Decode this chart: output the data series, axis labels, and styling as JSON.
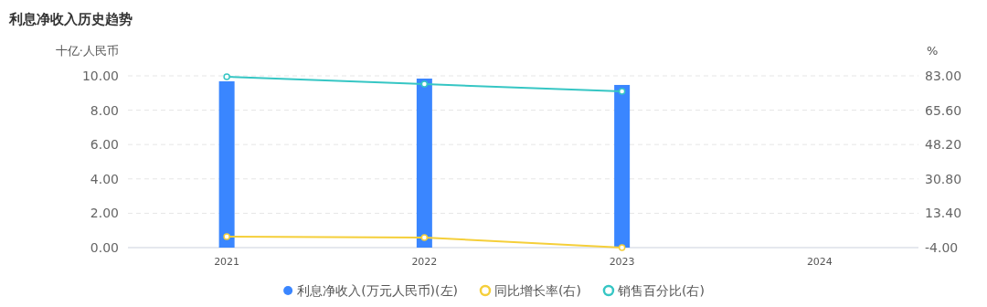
{
  "chart_data": {
    "type": "bar",
    "title": "利息净收入历史趋势",
    "ylabel": "十亿·人民币",
    "y2label": "%",
    "categories": [
      "2021",
      "2022",
      "2023",
      "2024"
    ],
    "series": [
      {
        "name": "利息净收入(万元人民币)(左)",
        "color": "#3a86ff",
        "values": [
          9.68,
          9.84,
          9.47,
          null
        ]
      },
      {
        "name": "同比增长率(右)",
        "type": "line",
        "axis": "y2",
        "color": "#f5cf3a",
        "values": [
          1.6,
          1.1,
          -4.0,
          null
        ]
      },
      {
        "name": "销售百分比(右)",
        "type": "line",
        "axis": "y2",
        "color": "#36c6c4",
        "values": [
          82.5,
          78.8,
          75.1,
          null
        ]
      }
    ],
    "ylim": [
      0,
      10
    ],
    "yticks": [
      {
        "value": 0,
        "label": "0.00"
      },
      {
        "value": 2,
        "label": "2.00"
      },
      {
        "value": 4,
        "label": "4.00"
      },
      {
        "value": 6,
        "label": "6.00"
      },
      {
        "value": 8,
        "label": "8.00"
      },
      {
        "value": 10,
        "label": "10.00"
      }
    ],
    "y2lim": [
      -4,
      83
    ],
    "y2ticks": [
      {
        "value": -4,
        "label": "-4.00"
      },
      {
        "value": 13.4,
        "label": "13.40"
      },
      {
        "value": 30.8,
        "label": "30.80"
      },
      {
        "value": 48.2,
        "label": "48.20"
      },
      {
        "value": 65.6,
        "label": "65.60"
      },
      {
        "value": 83,
        "label": "83.00"
      }
    ],
    "grid": "y",
    "legend": "bottom",
    "marker": "circle"
  }
}
